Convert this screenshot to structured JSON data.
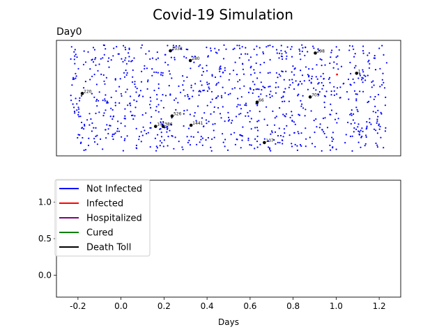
{
  "figure": {
    "suptitle": "Covid-19 Simulation"
  },
  "colors": {
    "not_infected": "#0000ff",
    "infected": "#ff0000",
    "hospitalized": "#800080",
    "cured": "#008000",
    "death": "#000000"
  },
  "chart_data": [
    {
      "type": "scatter",
      "title": "Day0",
      "axes_visible": false,
      "population_dots": "approximately 1000 blue points (not infected), one red point (infected)",
      "labeled_points": [
        {
          "label": "1038",
          "fx": 0.331,
          "fy": 0.09
        },
        {
          "label": "298",
          "fx": 0.752,
          "fy": 0.11
        },
        {
          "label": "280",
          "fx": 0.389,
          "fy": 0.175
        },
        {
          "label": "1",
          "fx": 0.872,
          "fy": 0.285
        },
        {
          "label": "220",
          "fx": 0.075,
          "fy": 0.46
        },
        {
          "label": "709",
          "fx": 0.737,
          "fy": 0.49
        },
        {
          "label": "66",
          "fx": 0.583,
          "fy": 0.535
        },
        {
          "label": "526",
          "fx": 0.336,
          "fy": 0.655
        },
        {
          "label": "101",
          "fx": 0.288,
          "fy": 0.745
        },
        {
          "label": "386",
          "fx": 0.31,
          "fy": 0.745
        },
        {
          "label": "1441",
          "fx": 0.391,
          "fy": 0.735
        },
        {
          "label": "107",
          "fx": 0.604,
          "fy": 0.885
        }
      ],
      "infected_points": [
        {
          "fx": 0.815,
          "fy": 0.295
        }
      ]
    },
    {
      "type": "line",
      "title": "",
      "xlabel": "Days",
      "ylabel": "",
      "xlim": [
        -0.3,
        1.3
      ],
      "ylim": [
        -0.3,
        1.3
      ],
      "xticks": [
        "-0.2",
        "0.0",
        "0.2",
        "0.4",
        "0.6",
        "0.8",
        "1.0",
        "1.2"
      ],
      "xtick_values": [
        -0.2,
        0.0,
        0.2,
        0.4,
        0.6,
        0.8,
        1.0,
        1.2
      ],
      "yticks": [
        "0.0",
        "0.5",
        "1.0"
      ],
      "ytick_values": [
        0.0,
        0.5,
        1.0
      ],
      "legend_placement": "upper left",
      "series": [
        {
          "name": "Not Infected",
          "color": "#0000ff",
          "values": []
        },
        {
          "name": "Infected",
          "color": "#ff0000",
          "values": []
        },
        {
          "name": "Hospitalized",
          "color": "#800080",
          "values": []
        },
        {
          "name": "Cured",
          "color": "#008000",
          "values": []
        },
        {
          "name": "Death Toll",
          "color": "#000000",
          "values": []
        }
      ]
    }
  ]
}
